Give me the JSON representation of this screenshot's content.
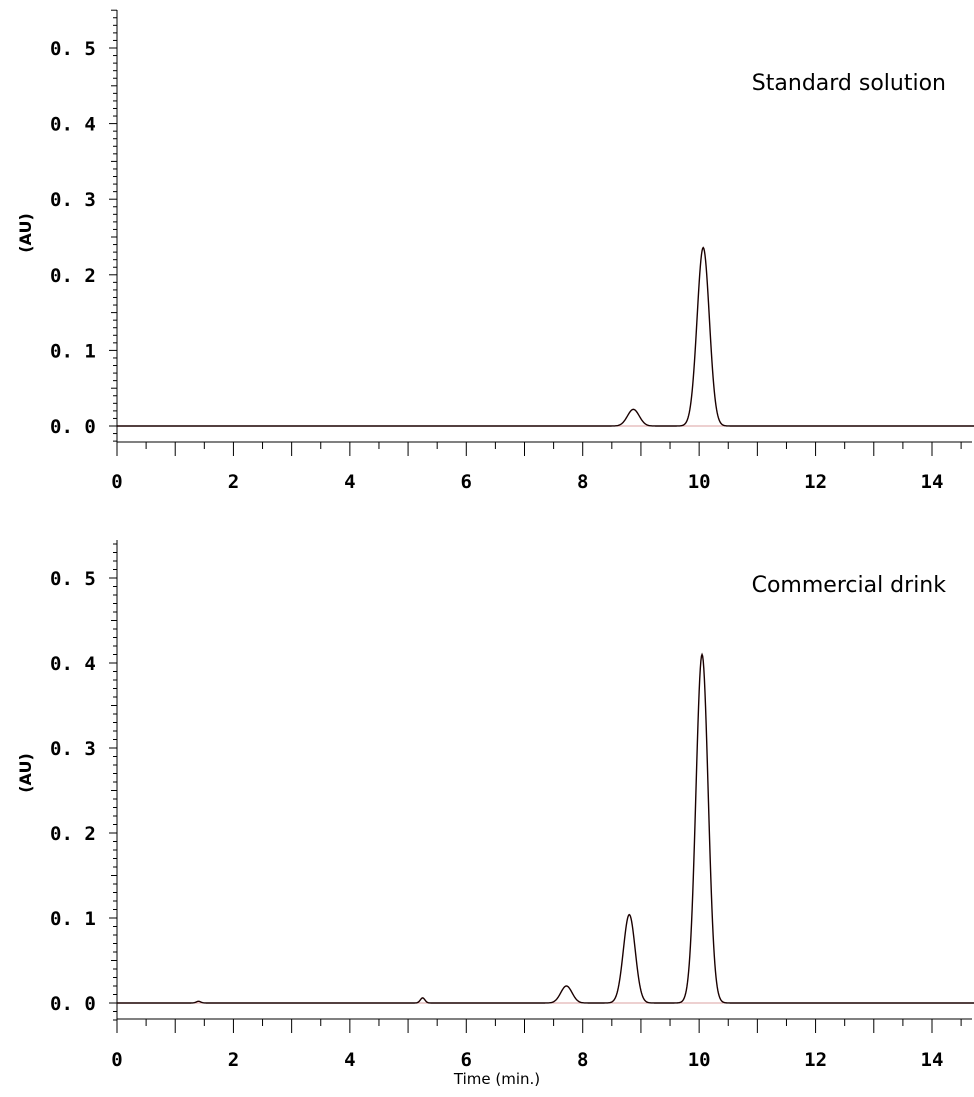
{
  "xlabel": "Time (min.)",
  "chart_data": [
    {
      "type": "line",
      "title": "Standard solution",
      "ylabel": "(AU)",
      "xlim": [
        0,
        14.85
      ],
      "ylim": [
        -0.025,
        0.555
      ],
      "x_ticks": [
        0,
        2,
        4,
        6,
        8,
        10,
        12,
        14
      ],
      "y_ticks": [
        "0.0",
        "0.1",
        "0.2",
        "0.3",
        "0.4",
        "0.5"
      ],
      "peaks": [
        {
          "rt": 8.87,
          "height": 0.022
        },
        {
          "rt": 10.07,
          "height": 0.236
        }
      ]
    },
    {
      "type": "line",
      "title": "Commercial drink",
      "ylabel": "(AU)",
      "xlim": [
        0,
        14.85
      ],
      "ylim": [
        -0.025,
        0.555
      ],
      "x_ticks": [
        0,
        2,
        4,
        6,
        8,
        10,
        12,
        14
      ],
      "y_ticks": [
        "0.0",
        "0.1",
        "0.2",
        "0.3",
        "0.4",
        "0.5"
      ],
      "peaks": [
        {
          "rt": 1.4,
          "height": 0.002
        },
        {
          "rt": 5.25,
          "height": 0.006
        },
        {
          "rt": 7.72,
          "height": 0.02
        },
        {
          "rt": 8.8,
          "height": 0.104
        },
        {
          "rt": 10.05,
          "height": 0.41
        }
      ]
    }
  ]
}
